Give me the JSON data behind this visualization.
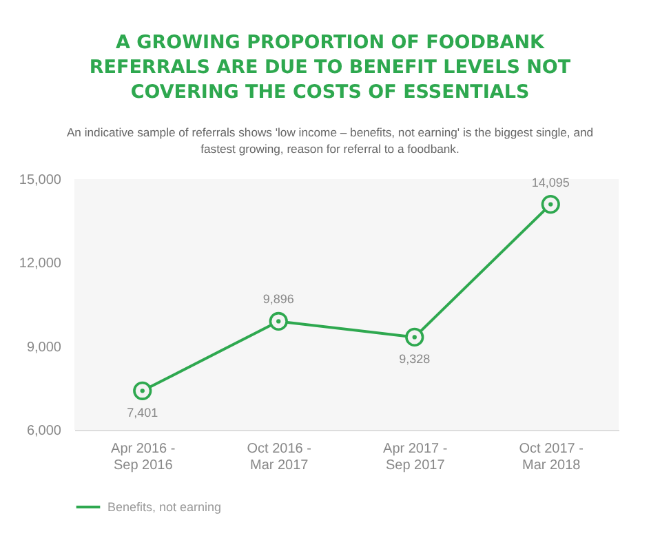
{
  "chart_data": {
    "type": "line",
    "title": "A GROWING PROPORTION OF FOODBANK REFERRALS ARE DUE TO BENEFIT LEVELS NOT COVERING THE COSTS OF ESSENTIALS",
    "subtitle": "An indicative sample of referrals shows 'low income – benefits, not earning' is the biggest single, and fastest growing, reason for referral to a foodbank.",
    "categories": [
      "Apr 2016 - Sep 2016",
      "Oct 2016 - Mar 2017",
      "Apr 2017 - Sep 2017",
      "Oct 2017 - Mar 2018"
    ],
    "series": [
      {
        "name": "Benefits, not earning",
        "color": "#2ea84f",
        "values": [
          7401,
          9896,
          9328,
          14095
        ],
        "value_labels": [
          "7,401",
          "9,896",
          "9,328",
          "14,095"
        ]
      }
    ],
    "ylim": [
      6000,
      15000
    ],
    "yticks": [
      {
        "value": 6000,
        "label": "6,000"
      },
      {
        "value": 9000,
        "label": "9,000"
      },
      {
        "value": 12000,
        "label": "12,000"
      },
      {
        "value": 15000,
        "label": "15,000"
      }
    ],
    "marker": "circle",
    "line_style": "solid",
    "legend": "bottom",
    "grid": false
  }
}
